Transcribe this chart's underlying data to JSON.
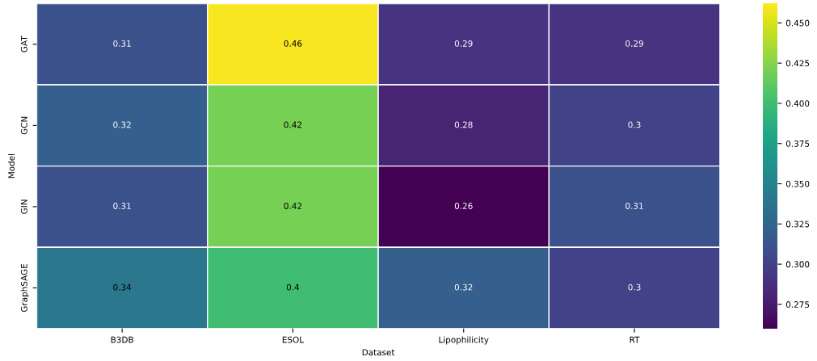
{
  "chart_data": {
    "type": "heatmap",
    "xlabel": "Dataset",
    "ylabel": "Model",
    "categories": [
      "B3DB",
      "ESOL",
      "Lipophilicity",
      "RT"
    ],
    "y_categories": [
      "GAT",
      "GCN",
      "GIN",
      "GraphSAGE"
    ],
    "cells": [
      [
        0.31,
        0.46,
        0.29,
        0.29
      ],
      [
        0.32,
        0.42,
        0.28,
        0.3
      ],
      [
        0.31,
        0.42,
        0.26,
        0.31
      ],
      [
        0.34,
        0.4,
        0.32,
        0.3
      ]
    ],
    "data_labels": true,
    "clim": [
      0.26,
      0.462
    ],
    "cticks": [
      {
        "value": 0.275,
        "label": "0.275"
      },
      {
        "value": 0.3,
        "label": "0.300"
      },
      {
        "value": 0.325,
        "label": "0.325"
      },
      {
        "value": 0.35,
        "label": "0.350"
      },
      {
        "value": 0.375,
        "label": "0.375"
      },
      {
        "value": 0.4,
        "label": "0.400"
      },
      {
        "value": 0.425,
        "label": "0.425"
      },
      {
        "value": 0.45,
        "label": "0.450"
      }
    ]
  }
}
